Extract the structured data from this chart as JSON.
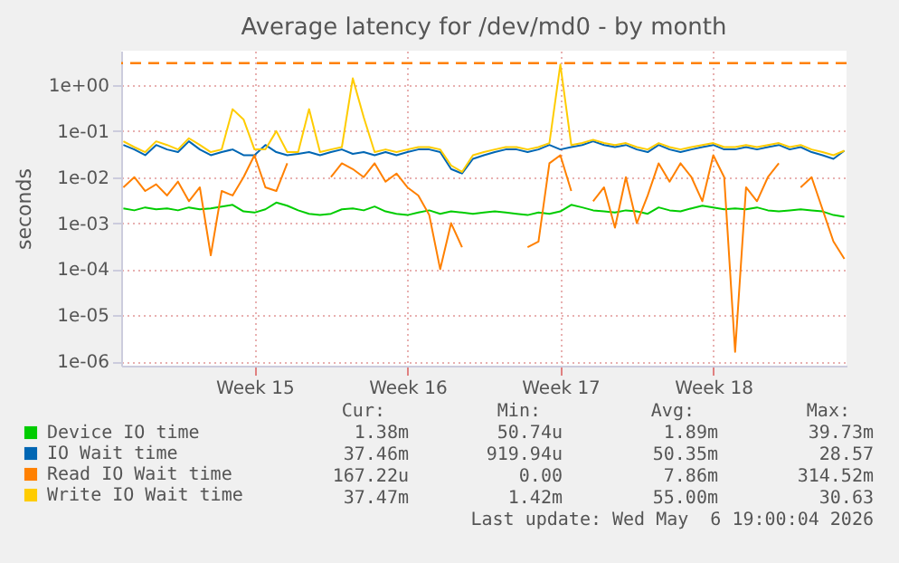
{
  "chart_data": {
    "type": "line",
    "title": "Average latency for /dev/md0 - by month",
    "ylabel": "seconds",
    "log": "y",
    "grid": true,
    "legend": "bottom left",
    "marker": "none",
    "line_style": "solid",
    "categories": [
      null,
      null,
      null,
      null,
      null,
      null,
      null,
      null,
      null,
      null,
      null,
      null,
      "Week 15",
      null,
      null,
      null,
      null,
      null,
      null,
      null,
      null,
      null,
      null,
      null,
      null,
      null,
      "Week 16",
      null,
      null,
      null,
      null,
      null,
      null,
      null,
      null,
      null,
      null,
      null,
      null,
      null,
      "Week 17",
      null,
      null,
      null,
      null,
      null,
      null,
      null,
      null,
      null,
      null,
      null,
      null,
      null,
      "Week 18",
      null,
      null,
      null,
      null,
      null,
      null,
      null,
      null,
      null,
      null,
      null,
      null
    ],
    "ylim": [
      8e-07,
      5.6
    ],
    "yticks": [
      {
        "value": 1,
        "label": "1e+00"
      },
      {
        "value": 0.1,
        "label": "1e-01"
      },
      {
        "value": 0.01,
        "label": "1e-02"
      },
      {
        "value": 0.001,
        "label": "1e-03"
      },
      {
        "value": 0.0001,
        "label": "1e-04"
      },
      {
        "value": 1e-05,
        "label": "1e-05"
      },
      {
        "value": 1e-06,
        "label": "1e-06"
      }
    ],
    "series": [
      {
        "name": "Device IO time",
        "color": "#00cc00",
        "values": [
          0.0021,
          0.0019,
          0.0022,
          0.002,
          0.0021,
          0.0019,
          0.0022,
          0.002,
          0.0021,
          0.0023,
          0.0025,
          0.0018,
          0.0017,
          0.002,
          0.0028,
          0.0024,
          0.0019,
          0.0016,
          0.0015,
          0.0016,
          0.002,
          0.0021,
          0.0019,
          0.0023,
          0.0018,
          0.0016,
          0.0015,
          0.0017,
          0.0019,
          0.0016,
          0.0018,
          0.0017,
          0.0016,
          0.0017,
          0.0018,
          0.0017,
          0.0016,
          0.0015,
          0.0017,
          0.0016,
          0.0018,
          0.0025,
          0.0022,
          0.0019,
          0.0018,
          0.0017,
          0.0019,
          0.0018,
          0.0016,
          0.0022,
          0.0019,
          0.0018,
          0.0021,
          0.0024,
          0.0022,
          0.002,
          0.0021,
          0.002,
          0.0022,
          0.0019,
          0.0018,
          0.0019,
          0.002,
          0.0019,
          0.0018,
          0.0015,
          0.00138
        ]
      },
      {
        "name": "IO Wait time",
        "color": "#0066b3",
        "values": [
          0.05,
          0.04,
          0.03,
          0.05,
          0.04,
          0.035,
          0.06,
          0.04,
          0.03,
          0.035,
          0.04,
          0.03,
          0.03,
          0.05,
          0.035,
          0.03,
          0.032,
          0.035,
          0.03,
          0.035,
          0.04,
          0.032,
          0.035,
          0.03,
          0.035,
          0.03,
          0.035,
          0.04,
          0.04,
          0.035,
          0.015,
          0.012,
          0.025,
          0.03,
          0.035,
          0.04,
          0.04,
          0.035,
          0.04,
          0.05,
          0.04,
          0.045,
          0.05,
          0.06,
          0.05,
          0.045,
          0.05,
          0.04,
          0.035,
          0.05,
          0.04,
          0.035,
          0.04,
          0.045,
          0.05,
          0.04,
          0.04,
          0.045,
          0.04,
          0.045,
          0.05,
          0.04,
          0.045,
          0.035,
          0.03,
          0.025,
          0.03746
        ]
      },
      {
        "name": "Read IO Wait time",
        "color": "#ff8000",
        "values": [
          0.006,
          0.01,
          0.005,
          0.007,
          0.004,
          0.008,
          0.003,
          0.006,
          0.0002,
          0.005,
          0.004,
          0.01,
          0.03,
          0.006,
          0.005,
          0.02,
          null,
          null,
          null,
          0.01,
          0.02,
          0.015,
          0.01,
          0.02,
          0.008,
          0.012,
          0.006,
          0.004,
          0.0015,
          0.0001,
          0.001,
          0.0003,
          null,
          null,
          null,
          null,
          null,
          0.0003,
          0.0004,
          0.02,
          0.03,
          0.005,
          null,
          0.003,
          0.006,
          0.0008,
          0.01,
          0.001,
          0.004,
          0.02,
          0.008,
          0.02,
          0.01,
          0.003,
          0.03,
          0.01,
          1.6e-06,
          0.006,
          0.003,
          0.01,
          0.02,
          null,
          0.006,
          0.01,
          0.002,
          0.0004,
          0.000167
        ]
      },
      {
        "name": "Write IO Wait time",
        "color": "#ffcc00",
        "values": [
          0.06,
          0.045,
          0.035,
          0.06,
          0.05,
          0.04,
          0.07,
          0.05,
          0.035,
          0.04,
          0.3,
          0.18,
          0.04,
          0.04,
          0.1,
          0.035,
          0.035,
          0.3,
          0.035,
          0.04,
          0.045,
          1.4,
          0.2,
          0.035,
          0.04,
          0.035,
          0.04,
          0.045,
          0.045,
          0.04,
          0.018,
          0.013,
          0.03,
          0.035,
          0.04,
          0.045,
          0.045,
          0.04,
          0.045,
          0.055,
          2.8,
          0.05,
          0.055,
          0.065,
          0.055,
          0.05,
          0.055,
          0.045,
          0.04,
          0.055,
          0.045,
          0.04,
          0.045,
          0.05,
          0.055,
          0.045,
          0.045,
          0.05,
          0.045,
          0.05,
          0.055,
          0.045,
          0.05,
          0.04,
          0.035,
          0.03,
          0.03747
        ]
      }
    ],
    "ref_lines": [
      {
        "axis": "y",
        "value": 3,
        "color": "#ff8000",
        "line_style": "dashed"
      }
    ],
    "annotations": [
      "Cur:",
      "Min:",
      "Avg:",
      "Max:",
      "1.38m",
      "50.74u",
      "1.89m",
      "39.73m",
      "37.46m",
      "919.94u",
      "50.35m",
      "28.57",
      "167.22u",
      "0.00",
      "7.86m",
      "314.52m",
      "37.47m",
      "1.42m",
      "55.00m",
      "30.63",
      "Last update: Wed May  6 19:00:04 2026"
    ]
  }
}
